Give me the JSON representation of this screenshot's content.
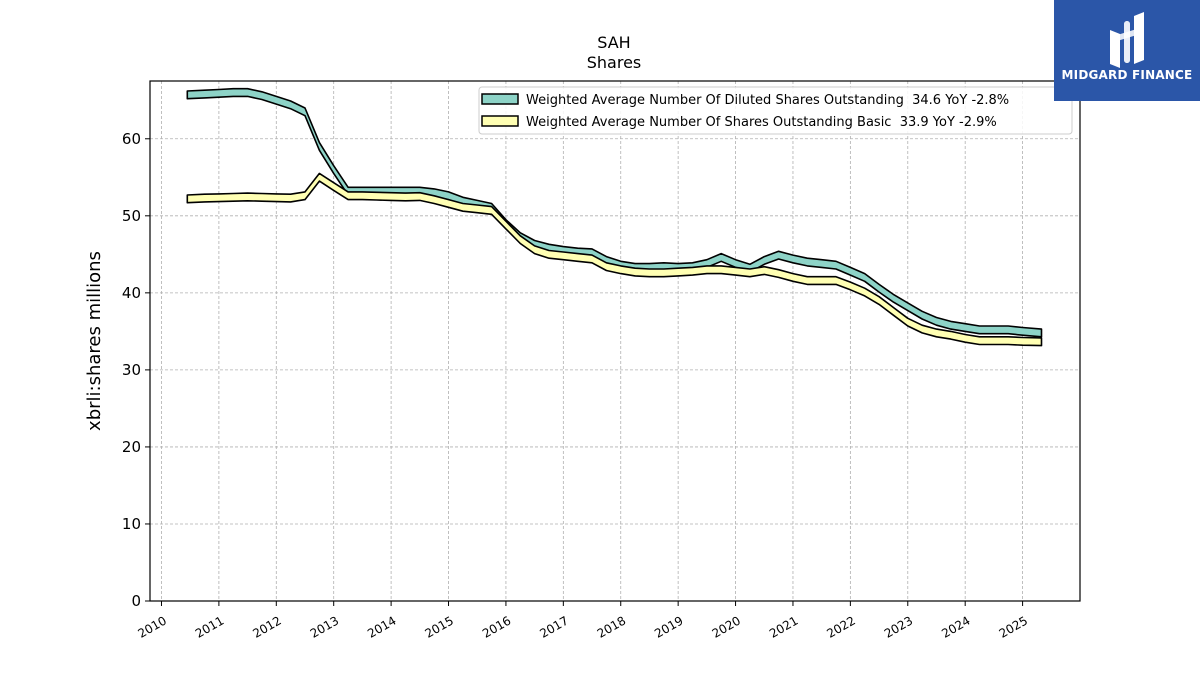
{
  "chart_data": {
    "type": "area",
    "title": "SAH",
    "subtitle": "Shares",
    "xlabel": "",
    "ylabel": "xbrli:shares millions",
    "xlim": [
      2009.8,
      2026.0
    ],
    "ylim": [
      0,
      67.5
    ],
    "yticks": [
      0,
      10,
      20,
      30,
      40,
      50,
      60
    ],
    "xticks": [
      "2010",
      "2011",
      "2012",
      "2013",
      "2014",
      "2015",
      "2016",
      "2017",
      "2018",
      "2019",
      "2020",
      "2021",
      "2022",
      "2023",
      "2024",
      "2025"
    ],
    "grid": true,
    "legend_position": "top-right",
    "series": [
      {
        "name": "Weighted Average Number Of Diluted Shares Outstanding  34.6 YoY -2.8%",
        "color": "#8dd3c7",
        "band": 0.5,
        "x": [
          2010.45,
          2010.75,
          2011.0,
          2011.25,
          2011.5,
          2011.75,
          2012.0,
          2012.25,
          2012.5,
          2012.75,
          2013.0,
          2013.25,
          2013.5,
          2013.75,
          2014.0,
          2014.25,
          2014.5,
          2014.75,
          2015.0,
          2015.25,
          2015.5,
          2015.75,
          2016.0,
          2016.25,
          2016.5,
          2016.75,
          2017.0,
          2017.25,
          2017.5,
          2017.75,
          2018.0,
          2018.25,
          2018.5,
          2018.75,
          2019.0,
          2019.25,
          2019.5,
          2019.75,
          2020.0,
          2020.25,
          2020.5,
          2020.75,
          2021.0,
          2021.25,
          2021.5,
          2021.75,
          2022.0,
          2022.25,
          2022.5,
          2022.75,
          2023.0,
          2023.25,
          2023.5,
          2023.75,
          2024.0,
          2024.25,
          2024.5,
          2024.75,
          2025.0,
          2025.33
        ],
        "values": [
          65.7,
          65.8,
          65.9,
          66.0,
          66.0,
          65.6,
          65.0,
          64.4,
          63.5,
          59.0,
          56.0,
          53.2,
          53.2,
          53.2,
          53.2,
          53.2,
          53.2,
          53.0,
          52.6,
          51.9,
          51.5,
          51.1,
          49.0,
          47.3,
          46.3,
          45.8,
          45.5,
          45.3,
          45.2,
          44.2,
          43.6,
          43.3,
          43.3,
          43.4,
          43.3,
          43.4,
          43.8,
          44.6,
          43.8,
          43.2,
          44.2,
          44.9,
          44.4,
          44.0,
          43.8,
          43.6,
          42.8,
          42.0,
          40.6,
          39.3,
          38.2,
          37.1,
          36.3,
          35.8,
          35.5,
          35.2,
          35.2,
          35.2,
          35.0,
          34.8
        ]
      },
      {
        "name": "Weighted Average Number Of Shares Outstanding Basic  33.9 YoY -2.9%",
        "color": "#ffffb3",
        "band": 0.5,
        "x": [
          2010.45,
          2010.75,
          2011.0,
          2011.25,
          2011.5,
          2011.75,
          2012.0,
          2012.25,
          2012.5,
          2012.75,
          2013.0,
          2013.25,
          2013.5,
          2013.75,
          2014.0,
          2014.25,
          2014.5,
          2014.75,
          2015.0,
          2015.25,
          2015.5,
          2015.75,
          2016.0,
          2016.25,
          2016.5,
          2016.75,
          2017.0,
          2017.25,
          2017.5,
          2017.75,
          2018.0,
          2018.25,
          2018.5,
          2018.75,
          2019.0,
          2019.25,
          2019.5,
          2019.75,
          2020.0,
          2020.25,
          2020.5,
          2020.75,
          2021.0,
          2021.25,
          2021.5,
          2021.75,
          2022.0,
          2022.25,
          2022.5,
          2022.75,
          2023.0,
          2023.25,
          2023.5,
          2023.75,
          2024.0,
          2024.25,
          2024.5,
          2024.75,
          2025.0,
          2025.33
        ],
        "values": [
          52.2,
          52.3,
          52.35,
          52.4,
          52.45,
          52.4,
          52.35,
          52.3,
          52.6,
          55.0,
          53.8,
          52.6,
          52.6,
          52.55,
          52.5,
          52.45,
          52.5,
          52.1,
          51.6,
          51.1,
          50.9,
          50.7,
          48.8,
          46.9,
          45.6,
          45.0,
          44.8,
          44.6,
          44.4,
          43.4,
          43.0,
          42.7,
          42.6,
          42.6,
          42.7,
          42.8,
          43.0,
          43.0,
          42.8,
          42.6,
          42.9,
          42.5,
          42.0,
          41.6,
          41.6,
          41.6,
          40.9,
          40.1,
          39.0,
          37.6,
          36.2,
          35.3,
          34.8,
          34.5,
          34.1,
          33.8,
          33.8,
          33.8,
          33.7,
          33.65
        ]
      }
    ]
  },
  "logo": {
    "text": "MIDGARD FINANCE"
  }
}
